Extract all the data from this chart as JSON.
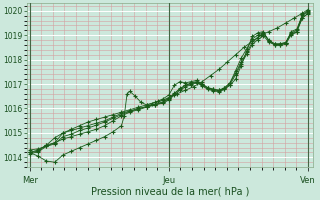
{
  "title": "",
  "xlabel": "Pression niveau de la mer( hPa )",
  "bg_color": "#cce8dc",
  "plot_bg_color": "#cce8dc",
  "line_color": "#1a5c1a",
  "marker_color": "#1a5c1a",
  "ylim": [
    1013.6,
    1020.3
  ],
  "yticks": [
    1014,
    1015,
    1016,
    1017,
    1018,
    1019,
    1020
  ],
  "day_labels": [
    "Mer",
    "Jeu",
    "Ven"
  ],
  "day_positions": [
    0.0,
    0.5,
    1.0
  ],
  "series": [
    [
      0.0,
      1014.2,
      0.03,
      1014.25,
      0.06,
      1014.5,
      0.09,
      1014.8,
      0.12,
      1015.0,
      0.15,
      1015.15,
      0.18,
      1015.3,
      0.21,
      1015.45,
      0.24,
      1015.55,
      0.27,
      1015.65,
      0.3,
      1015.75,
      0.33,
      1015.85,
      0.36,
      1015.95,
      0.39,
      1016.05,
      0.42,
      1016.15,
      0.45,
      1016.25,
      0.48,
      1016.35,
      0.5,
      1016.45,
      0.53,
      1016.6,
      0.56,
      1016.75,
      0.59,
      1016.9,
      0.62,
      1017.1,
      0.65,
      1017.35,
      0.68,
      1017.6,
      0.71,
      1017.9,
      0.74,
      1018.2,
      0.77,
      1018.5,
      0.8,
      1018.75,
      0.83,
      1019.0,
      0.86,
      1019.15,
      0.89,
      1019.3,
      0.92,
      1019.5,
      0.95,
      1019.7,
      0.98,
      1019.9,
      1.0,
      1020.05
    ],
    [
      0.0,
      1014.2,
      0.03,
      1014.05,
      0.06,
      1013.85,
      0.09,
      1013.8,
      0.12,
      1014.1,
      0.15,
      1014.25,
      0.18,
      1014.4,
      0.21,
      1014.55,
      0.24,
      1014.7,
      0.27,
      1014.85,
      0.3,
      1015.05,
      0.33,
      1015.3,
      0.34,
      1015.7,
      0.35,
      1016.6,
      0.36,
      1016.7,
      0.38,
      1016.5,
      0.4,
      1016.25,
      0.42,
      1016.15,
      0.44,
      1016.2,
      0.46,
      1016.3,
      0.48,
      1016.4,
      0.5,
      1016.55,
      0.52,
      1016.95,
      0.54,
      1017.1,
      0.56,
      1017.05,
      0.58,
      1017.1,
      0.6,
      1017.15,
      0.62,
      1017.0,
      0.64,
      1016.85,
      0.66,
      1016.75,
      0.68,
      1016.75,
      0.7,
      1016.8,
      0.72,
      1016.95,
      0.74,
      1017.2,
      0.76,
      1017.75,
      0.78,
      1018.35,
      0.8,
      1018.95,
      0.82,
      1019.1,
      0.84,
      1019.15,
      0.86,
      1018.75,
      0.88,
      1018.6,
      0.9,
      1018.65,
      0.92,
      1018.7,
      0.94,
      1019.05,
      0.96,
      1019.15,
      0.98,
      1019.85,
      1.0,
      1020.0
    ],
    [
      0.0,
      1014.3,
      0.03,
      1014.35,
      0.06,
      1014.45,
      0.09,
      1014.6,
      0.12,
      1014.75,
      0.15,
      1014.85,
      0.18,
      1014.95,
      0.21,
      1015.05,
      0.24,
      1015.15,
      0.27,
      1015.3,
      0.3,
      1015.5,
      0.33,
      1015.7,
      0.36,
      1015.85,
      0.39,
      1015.95,
      0.42,
      1016.05,
      0.45,
      1016.15,
      0.48,
      1016.25,
      0.5,
      1016.4,
      0.52,
      1016.6,
      0.54,
      1016.8,
      0.56,
      1016.95,
      0.58,
      1017.05,
      0.6,
      1017.1,
      0.62,
      1017.0,
      0.64,
      1016.85,
      0.66,
      1016.8,
      0.68,
      1016.75,
      0.7,
      1016.85,
      0.72,
      1017.05,
      0.74,
      1017.45,
      0.76,
      1017.9,
      0.78,
      1018.3,
      0.8,
      1018.7,
      0.82,
      1018.9,
      0.84,
      1019.05,
      0.86,
      1018.8,
      0.88,
      1018.65,
      0.9,
      1018.65,
      0.92,
      1018.7,
      0.94,
      1019.1,
      0.96,
      1019.2,
      0.98,
      1019.7,
      1.0,
      1019.9
    ],
    [
      0.0,
      1014.2,
      0.03,
      1014.3,
      0.06,
      1014.5,
      0.09,
      1014.6,
      0.12,
      1015.0,
      0.15,
      1015.1,
      0.18,
      1015.2,
      0.21,
      1015.3,
      0.24,
      1015.4,
      0.27,
      1015.5,
      0.3,
      1015.65,
      0.33,
      1015.8,
      0.36,
      1015.9,
      0.39,
      1016.0,
      0.42,
      1016.08,
      0.45,
      1016.15,
      0.48,
      1016.22,
      0.5,
      1016.35,
      0.52,
      1016.55,
      0.54,
      1016.75,
      0.56,
      1016.88,
      0.58,
      1016.98,
      0.6,
      1017.05,
      0.62,
      1016.95,
      0.64,
      1016.82,
      0.66,
      1016.78,
      0.68,
      1016.72,
      0.7,
      1016.82,
      0.72,
      1017.05,
      0.74,
      1017.55,
      0.76,
      1018.05,
      0.78,
      1018.45,
      0.8,
      1018.85,
      0.82,
      1019.0,
      0.84,
      1019.1,
      0.86,
      1018.78,
      0.88,
      1018.65,
      0.9,
      1018.62,
      0.92,
      1018.68,
      0.94,
      1019.15,
      0.96,
      1019.25,
      0.98,
      1019.82,
      1.0,
      1019.95
    ],
    [
      0.0,
      1014.15,
      0.03,
      1014.22,
      0.06,
      1014.45,
      0.09,
      1014.55,
      0.12,
      1014.85,
      0.15,
      1014.95,
      0.18,
      1015.1,
      0.21,
      1015.2,
      0.24,
      1015.32,
      0.27,
      1015.45,
      0.3,
      1015.6,
      0.33,
      1015.75,
      0.36,
      1015.88,
      0.39,
      1015.98,
      0.42,
      1016.08,
      0.45,
      1016.18,
      0.48,
      1016.28,
      0.5,
      1016.42,
      0.52,
      1016.62,
      0.54,
      1016.82,
      0.56,
      1016.95,
      0.58,
      1017.02,
      0.6,
      1017.08,
      0.62,
      1016.93,
      0.64,
      1016.78,
      0.66,
      1016.73,
      0.68,
      1016.68,
      0.7,
      1016.78,
      0.72,
      1016.98,
      0.74,
      1017.38,
      0.76,
      1017.82,
      0.78,
      1018.22,
      0.8,
      1018.62,
      0.82,
      1018.82,
      0.84,
      1018.98,
      0.86,
      1018.72,
      0.88,
      1018.62,
      0.9,
      1018.58,
      0.92,
      1018.63,
      0.94,
      1019.02,
      0.96,
      1019.12,
      0.98,
      1019.72,
      1.0,
      1019.88
    ]
  ]
}
